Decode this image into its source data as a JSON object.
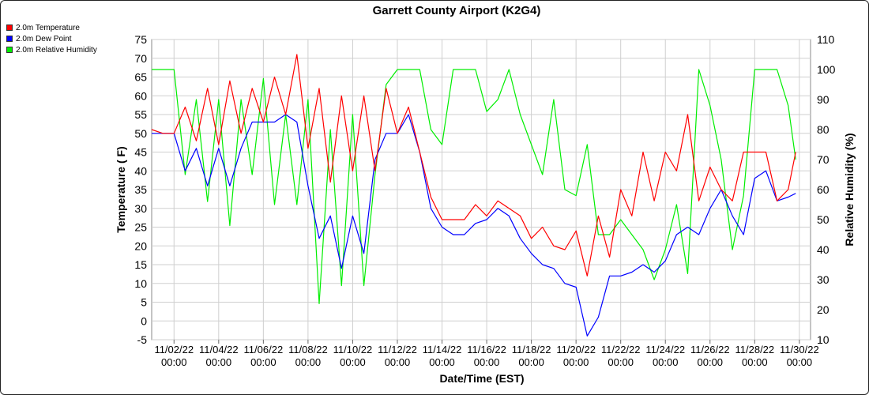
{
  "chart_data": {
    "type": "line",
    "title": "Garrett County Airport (K2G4)",
    "xlabel": "Date/Time (EST)",
    "ylabel": "Temperature ( F)",
    "y2label": "Relative Humidity (%)",
    "ylim": [
      -5,
      75
    ],
    "y2lim": [
      10,
      110
    ],
    "yticks": [
      -5,
      0,
      5,
      10,
      15,
      20,
      25,
      30,
      35,
      40,
      45,
      50,
      55,
      60,
      65,
      70,
      75
    ],
    "y2ticks": [
      10,
      20,
      30,
      40,
      50,
      60,
      70,
      80,
      90,
      100,
      110
    ],
    "xlim": [
      "2022-11-01 00:00",
      "2022-11-30 12:00"
    ],
    "xticks": [
      {
        "date": "11/02/22",
        "time": "00:00"
      },
      {
        "date": "11/04/22",
        "time": "00:00"
      },
      {
        "date": "11/06/22",
        "time": "00:00"
      },
      {
        "date": "11/08/22",
        "time": "00:00"
      },
      {
        "date": "11/10/22",
        "time": "00:00"
      },
      {
        "date": "11/12/22",
        "time": "00:00"
      },
      {
        "date": "11/14/22",
        "time": "00:00"
      },
      {
        "date": "11/16/22",
        "time": "00:00"
      },
      {
        "date": "11/18/22",
        "time": "00:00"
      },
      {
        "date": "11/20/22",
        "time": "00:00"
      },
      {
        "date": "11/22/22",
        "time": "00:00"
      },
      {
        "date": "11/24/22",
        "time": "00:00"
      },
      {
        "date": "11/26/22",
        "time": "00:00"
      },
      {
        "date": "11/28/22",
        "time": "00:00"
      },
      {
        "date": "11/30/22",
        "time": "00:00"
      }
    ],
    "grid": true,
    "legend_position": "top-left",
    "x": [
      "11/01 00:00",
      "11/01 12:00",
      "11/02 00:00",
      "11/02 12:00",
      "11/03 00:00",
      "11/03 12:00",
      "11/04 00:00",
      "11/04 12:00",
      "11/05 00:00",
      "11/05 12:00",
      "11/06 00:00",
      "11/06 12:00",
      "11/07 00:00",
      "11/07 12:00",
      "11/08 00:00",
      "11/08 12:00",
      "11/09 00:00",
      "11/09 12:00",
      "11/10 00:00",
      "11/10 12:00",
      "11/11 00:00",
      "11/11 12:00",
      "11/12 00:00",
      "11/12 12:00",
      "11/13 00:00",
      "11/13 12:00",
      "11/14 00:00",
      "11/14 12:00",
      "11/15 00:00",
      "11/15 12:00",
      "11/16 00:00",
      "11/16 12:00",
      "11/17 00:00",
      "11/17 12:00",
      "11/18 00:00",
      "11/18 12:00",
      "11/19 00:00",
      "11/19 12:00",
      "11/20 00:00",
      "11/20 12:00",
      "11/21 00:00",
      "11/21 12:00",
      "11/22 00:00",
      "11/22 12:00",
      "11/23 00:00",
      "11/23 12:00",
      "11/24 00:00",
      "11/24 12:00",
      "11/25 00:00",
      "11/25 12:00",
      "11/26 00:00",
      "11/26 12:00",
      "11/27 00:00",
      "11/27 12:00",
      "11/28 00:00",
      "11/28 12:00",
      "11/29 00:00",
      "11/29 12:00",
      "11/29 20:00"
    ],
    "series": [
      {
        "name": "2.0m Temperature",
        "color": "#ff0000",
        "axis": "left",
        "values": [
          51,
          50,
          50,
          57,
          48,
          62,
          47,
          64,
          50,
          62,
          53,
          65,
          55,
          71,
          46,
          62,
          37,
          60,
          40,
          60,
          40,
          62,
          50,
          57,
          45,
          33,
          27,
          27,
          27,
          31,
          28,
          32,
          30,
          28,
          22,
          25,
          20,
          19,
          24,
          12,
          28,
          17,
          35,
          28,
          45,
          32,
          45,
          40,
          55,
          32,
          41,
          35,
          32,
          45,
          45,
          45,
          32,
          35,
          45
        ]
      },
      {
        "name": "2.0m Dew Point",
        "color": "#0000ff",
        "axis": "left",
        "values": [
          50,
          50,
          50,
          40,
          46,
          36,
          46,
          36,
          46,
          53,
          53,
          53,
          55,
          53,
          36,
          22,
          28,
          14,
          28,
          18,
          43,
          50,
          50,
          55,
          45,
          30,
          25,
          23,
          23,
          26,
          27,
          30,
          28,
          22,
          18,
          15,
          14,
          10,
          9,
          -4,
          1,
          12,
          12,
          13,
          15,
          13,
          16,
          23,
          25,
          23,
          30,
          35,
          28,
          23,
          38,
          40,
          32,
          33,
          34
        ]
      },
      {
        "name": "2.0m Relative Humidity",
        "color": "#00ee00",
        "axis": "right",
        "values": [
          100,
          100,
          100,
          65,
          90,
          56,
          90,
          48,
          90,
          65,
          97,
          55,
          85,
          55,
          90,
          22,
          80,
          28,
          85,
          28,
          65,
          95,
          100,
          100,
          100,
          80,
          75,
          100,
          100,
          100,
          86,
          90,
          100,
          85,
          75,
          65,
          90,
          60,
          58,
          75,
          45,
          45,
          50,
          45,
          40,
          30,
          40,
          55,
          32,
          100,
          88,
          70,
          40,
          58,
          100,
          100,
          100,
          88,
          70
        ]
      }
    ]
  }
}
